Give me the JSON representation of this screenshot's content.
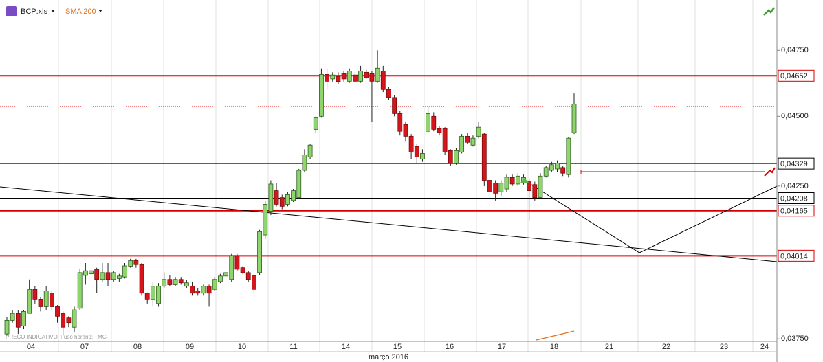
{
  "chart_data": {
    "type": "candlestick",
    "title": "BCP:xls",
    "indicator": "SMA 200",
    "footer_note": "PREÇO INDICATIVO",
    "timezone_note": "Fuso horário: TMG",
    "x_title": "março 2016",
    "categories": [
      "04",
      "07",
      "08",
      "09",
      "10",
      "11",
      "14",
      "15",
      "16",
      "17",
      "18",
      "21",
      "22",
      "23",
      "24"
    ],
    "log_scale": true,
    "ylim": [
      0.03742,
      0.0495
    ],
    "yticks": [
      {
        "value": 0.0375,
        "label": "0,03750"
      },
      {
        "value": 0.0425,
        "label": "0,04250"
      },
      {
        "value": 0.045,
        "label": "0,04500"
      },
      {
        "value": 0.0475,
        "label": "0,04750"
      }
    ],
    "levels": [
      {
        "value": 0.04652,
        "label": "0,04652",
        "color": "#d40000"
      },
      {
        "value": 0.04329,
        "label": "0,04329",
        "color": "#000000"
      },
      {
        "value": 0.04208,
        "label": "0,04208",
        "color": "#000000"
      },
      {
        "value": 0.04165,
        "label": "0,04165",
        "color": "#d40000"
      },
      {
        "value": 0.04014,
        "label": "0,04014",
        "color": "#d40000"
      }
    ],
    "up_color": "#8fd46c",
    "down_color": "#d4151b",
    "ohlc": [
      [
        0.03765,
        0.03818,
        0.0376,
        0.03807
      ],
      [
        0.03807,
        0.0384,
        0.038,
        0.03829
      ],
      [
        0.03829,
        0.0384,
        0.03765,
        0.03786
      ],
      [
        0.0379,
        0.0384,
        0.0378,
        0.03835
      ],
      [
        0.03829,
        0.03937,
        0.03829,
        0.03905
      ],
      [
        0.03905,
        0.03915,
        0.0386,
        0.03872
      ],
      [
        0.03872,
        0.0388,
        0.03835,
        0.0385
      ],
      [
        0.0385,
        0.03915,
        0.0384,
        0.039
      ],
      [
        0.03893,
        0.039,
        0.0384,
        0.0385
      ],
      [
        0.0385,
        0.03855,
        0.038,
        0.0382
      ],
      [
        0.03829,
        0.03835,
        0.0376,
        0.03786
      ],
      [
        0.03815,
        0.0382,
        0.03786,
        0.038
      ],
      [
        0.03786,
        0.0385,
        0.0377,
        0.0384
      ],
      [
        0.03845,
        0.0397,
        0.0384,
        0.03959
      ],
      [
        0.0395,
        0.0399,
        0.0392,
        0.03965
      ],
      [
        0.03955,
        0.03975,
        0.0394,
        0.03965
      ],
      [
        0.0397,
        0.03975,
        0.03893,
        0.03937
      ],
      [
        0.03937,
        0.0399,
        0.0393,
        0.03959
      ],
      [
        0.03959,
        0.0399,
        0.03915,
        0.03937
      ],
      [
        0.03937,
        0.03965,
        0.0393,
        0.03959
      ],
      [
        0.0394,
        0.03955,
        0.0393,
        0.03948
      ],
      [
        0.03945,
        0.0399,
        0.0394,
        0.03981
      ],
      [
        0.0398,
        0.04004,
        0.03975,
        0.03998
      ],
      [
        0.03998,
        0.04004,
        0.03975,
        0.03985
      ],
      [
        0.03985,
        0.0399,
        0.03885,
        0.03893
      ],
      [
        0.03893,
        0.03895,
        0.0386,
        0.03872
      ],
      [
        0.03872,
        0.0393,
        0.0385,
        0.03915
      ],
      [
        0.0386,
        0.03925,
        0.0385,
        0.03915
      ],
      [
        0.03915,
        0.0396,
        0.0391,
        0.03937
      ],
      [
        0.03937,
        0.0395,
        0.03915,
        0.0392
      ],
      [
        0.0392,
        0.03945,
        0.03915,
        0.03937
      ],
      [
        0.03937,
        0.03945,
        0.0392,
        0.03926
      ],
      [
        0.03915,
        0.03935,
        0.0391,
        0.03926
      ],
      [
        0.03915,
        0.0393,
        0.03885,
        0.03893
      ],
      [
        0.039,
        0.0391,
        0.03885,
        0.03893
      ],
      [
        0.03893,
        0.0392,
        0.03885,
        0.03915
      ],
      [
        0.03915,
        0.0392,
        0.0385,
        0.03893
      ],
      [
        0.03905,
        0.03945,
        0.039,
        0.03937
      ],
      [
        0.0393,
        0.03955,
        0.03925,
        0.03948
      ],
      [
        0.03948,
        0.03965,
        0.0394,
        0.03959
      ],
      [
        0.03937,
        0.0402,
        0.0393,
        0.04015
      ],
      [
        0.04015,
        0.0402,
        0.03965,
        0.0397
      ],
      [
        0.03975,
        0.0398,
        0.03955,
        0.03959
      ],
      [
        0.03959,
        0.03965,
        0.0393,
        0.03937
      ],
      [
        0.0395,
        0.03955,
        0.03895,
        0.03905
      ],
      [
        0.03959,
        0.041,
        0.0395,
        0.04094
      ],
      [
        0.04083,
        0.042,
        0.0407,
        0.04187
      ],
      [
        0.04163,
        0.0427,
        0.0415,
        0.04257
      ],
      [
        0.04234,
        0.0426,
        0.0418,
        0.04187
      ],
      [
        0.0421,
        0.0422,
        0.0417,
        0.0418
      ],
      [
        0.04187,
        0.0423,
        0.0418,
        0.0422
      ],
      [
        0.042,
        0.0424,
        0.04195,
        0.04234
      ],
      [
        0.0421,
        0.0431,
        0.04205,
        0.04305
      ],
      [
        0.04305,
        0.0438,
        0.043,
        0.0436
      ],
      [
        0.04353,
        0.044,
        0.04345,
        0.04395
      ],
      [
        0.04452,
        0.045,
        0.0444,
        0.04495
      ],
      [
        0.045,
        0.0468,
        0.04495,
        0.04657
      ],
      [
        0.04657,
        0.0468,
        0.046,
        0.04631
      ],
      [
        0.0464,
        0.04665,
        0.0463,
        0.04655
      ],
      [
        0.0465,
        0.04665,
        0.0462,
        0.0463
      ],
      [
        0.0466,
        0.0467,
        0.0463,
        0.0464
      ],
      [
        0.04631,
        0.0468,
        0.04625,
        0.0467
      ],
      [
        0.04655,
        0.04665,
        0.04625,
        0.04631
      ],
      [
        0.04631,
        0.0469,
        0.04625,
        0.0467
      ],
      [
        0.04665,
        0.04675,
        0.0464,
        0.04645
      ],
      [
        0.0466,
        0.0467,
        0.0448,
        0.04631
      ],
      [
        0.04631,
        0.0475,
        0.04625,
        0.04681
      ],
      [
        0.0467,
        0.0469,
        0.0459,
        0.046
      ],
      [
        0.046,
        0.0461,
        0.0456,
        0.0457
      ],
      [
        0.0457,
        0.0458,
        0.045,
        0.0451
      ],
      [
        0.0451,
        0.0452,
        0.0443,
        0.04445
      ],
      [
        0.0447,
        0.0448,
        0.0441,
        0.04427
      ],
      [
        0.04427,
        0.04435,
        0.04345,
        0.0437
      ],
      [
        0.0439,
        0.044,
        0.04329,
        0.04353
      ],
      [
        0.04345,
        0.0438,
        0.04335,
        0.04365
      ],
      [
        0.04445,
        0.04535,
        0.0444,
        0.0451
      ],
      [
        0.045,
        0.04515,
        0.04445,
        0.04452
      ],
      [
        0.04455,
        0.04465,
        0.0443,
        0.0444
      ],
      [
        0.04455,
        0.0446,
        0.0436,
        0.0437
      ],
      [
        0.04375,
        0.0438,
        0.0432,
        0.0433
      ],
      [
        0.0433,
        0.04385,
        0.04325,
        0.04375
      ],
      [
        0.0437,
        0.04435,
        0.04365,
        0.04427
      ],
      [
        0.04427,
        0.0444,
        0.044,
        0.04405
      ],
      [
        0.04395,
        0.0443,
        0.0439,
        0.0442
      ],
      [
        0.04427,
        0.0448,
        0.0442,
        0.0446
      ],
      [
        0.04435,
        0.0444,
        0.0425,
        0.0427
      ],
      [
        0.0427,
        0.0428,
        0.0418,
        0.0423
      ],
      [
        0.0426,
        0.0427,
        0.042,
        0.04225
      ],
      [
        0.0423,
        0.0427,
        0.04215,
        0.0426
      ],
      [
        0.0424,
        0.0429,
        0.0423,
        0.04281
      ],
      [
        0.0428,
        0.0429,
        0.0425,
        0.04257
      ],
      [
        0.04257,
        0.04295,
        0.0425,
        0.04285
      ],
      [
        0.04265,
        0.0429,
        0.04255,
        0.0428
      ],
      [
        0.04265,
        0.04275,
        0.0413,
        0.04234
      ],
      [
        0.04255,
        0.04265,
        0.042,
        0.0421
      ],
      [
        0.0421,
        0.04295,
        0.04205,
        0.04285
      ],
      [
        0.04285,
        0.0432,
        0.0428,
        0.04315
      ],
      [
        0.04305,
        0.04335,
        0.043,
        0.04325
      ],
      [
        0.0431,
        0.0434,
        0.043,
        0.0433
      ],
      [
        0.04315,
        0.0432,
        0.04285,
        0.04295
      ],
      [
        0.0429,
        0.04425,
        0.0428,
        0.0442
      ],
      [
        0.0444,
        0.04585,
        0.04435,
        0.04545
      ]
    ]
  }
}
